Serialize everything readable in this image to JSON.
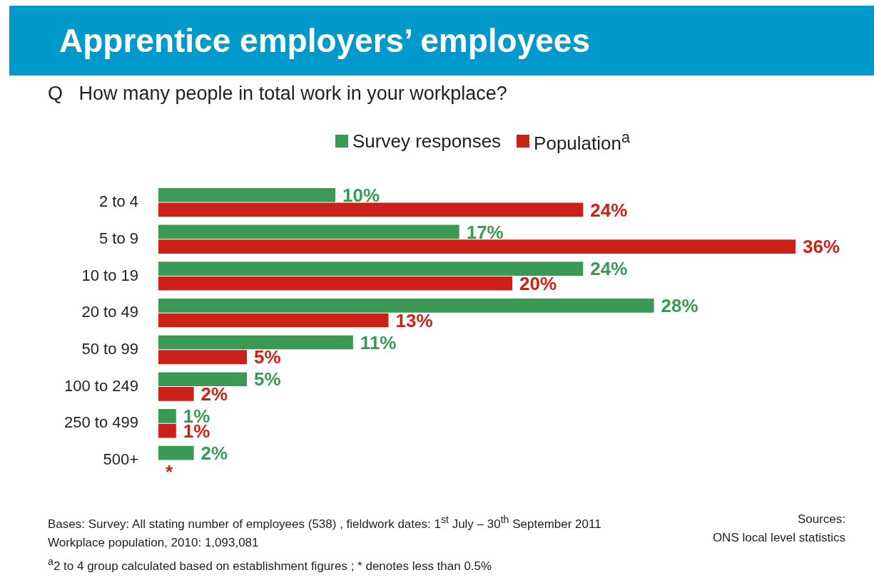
{
  "chart_data": {
    "type": "bar",
    "orientation": "horizontal",
    "title": "Apprentice employers’ employees",
    "subtitle": "Q   How many people in total work in your workplace?",
    "categories": [
      "2 to 4",
      "5 to 9",
      "10 to 19",
      "20 to 49",
      "50 to 99",
      "100 to 249",
      "250 to 499",
      "500+"
    ],
    "series": [
      {
        "name": "Survey responses",
        "color": "#3a9a55",
        "values": [
          10,
          17,
          24,
          28,
          11,
          5,
          1,
          2
        ],
        "value_labels": [
          "10%",
          "17%",
          "24%",
          "28%",
          "11%",
          "5%",
          "1%",
          "2%"
        ]
      },
      {
        "name": "Population$^{a}$",
        "color": "#cc2118",
        "values": [
          24,
          36,
          20,
          13,
          5,
          2,
          1,
          null
        ],
        "value_labels": [
          "24%",
          "36%",
          "20%",
          "13%",
          "5%",
          "2%",
          "1%",
          "*"
        ]
      }
    ],
    "legend": "top",
    "annotations": [
      "Bases:  Survey: All stating number of employees (538) , fieldwork dates: 1$^{st}$ July – 30$^{th}$ September 2011",
      "Workplace population, 2010: 1,093,081",
      "$^{a}$2 to 4 group calculated based on establishment figures ;  * denotes less than 0.5%",
      "Sources:",
      "ONS local level statistics"
    ]
  }
}
